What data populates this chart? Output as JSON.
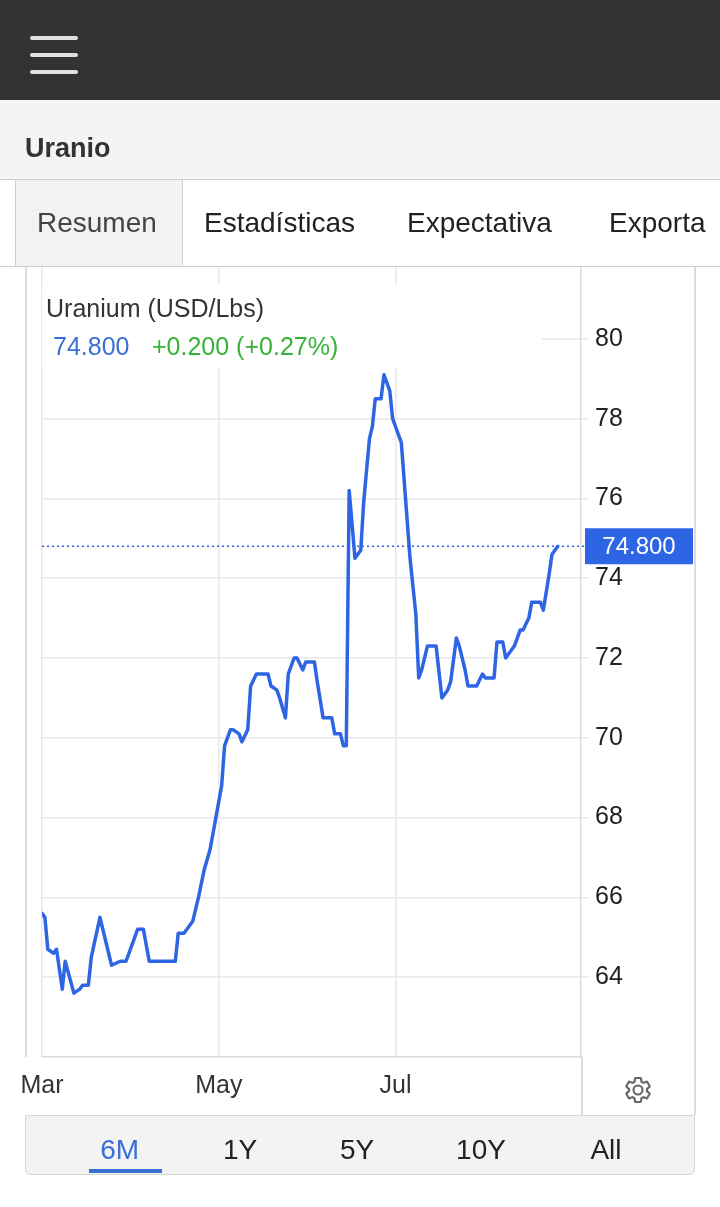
{
  "chart_data": {
    "type": "line",
    "title": "Uranio",
    "subtitle": "Uranium (USD/Lbs)",
    "annotations": [
      "74.800",
      "+0.200 (+0.27%)",
      "Resumen",
      "Estadísticas",
      "Expectativa",
      "Exporta",
      "6M",
      "1Y",
      "5Y",
      "10Y",
      "All"
    ],
    "x": [
      "--03-01",
      "--03-02",
      "--03-03",
      "--03-05",
      "--03-06",
      "--03-08",
      "--03-09",
      "--03-12",
      "--03-14",
      "--03-15",
      "--03-17",
      "--03-18",
      "--03-21",
      "--03-25",
      "--03-28",
      "--03-30",
      "--04-03",
      "--04-05",
      "--04-07",
      "--04-16",
      "--04-17",
      "--04-19",
      "--04-21",
      "--04-22",
      "--04-24",
      "--04-26",
      "--04-28",
      "--04-30",
      "--05-02",
      "--05-03",
      "--05-05",
      "--05-06",
      "--05-08",
      "--05-09",
      "--05-11",
      "--05-12",
      "--05-14",
      "--05-18",
      "--05-19",
      "--05-21",
      "--05-22",
      "--05-24",
      "--05-25",
      "--05-27",
      "--05-28",
      "--05-30",
      "--05-31",
      "--06-01",
      "--06-03",
      "--06-04",
      "--06-06",
      "--06-09",
      "--06-10",
      "--06-12",
      "--06-13",
      "--06-14",
      "--06-15",
      "--06-17",
      "--06-19",
      "--06-20",
      "--06-22",
      "--06-23",
      "--06-24",
      "--06-26",
      "--06-27",
      "--06-29",
      "--06-30",
      "--07-01",
      "--07-03",
      "--07-06",
      "--07-08",
      "--07-09",
      "--07-10",
      "--07-12",
      "--07-15",
      "--07-17",
      "--07-19",
      "--07-20",
      "--07-22",
      "--07-23",
      "--07-25",
      "--07-26",
      "--07-28",
      "--07-29",
      "--07-31",
      "--08-01",
      "--08-04",
      "--08-05",
      "--08-07",
      "--08-08",
      "--08-10",
      "--08-11",
      "--08-13",
      "--08-14",
      "--08-16",
      "--08-17",
      "--08-20",
      "--08-21",
      "--08-23",
      "--08-24",
      "--08-26"
    ],
    "series": [
      {
        "color": "#2e65e5",
        "values": [
          65.6,
          65.5,
          64.7,
          64.6,
          64.7,
          63.7,
          64.4,
          63.6,
          63.7,
          63.8,
          63.8,
          64.5,
          65.5,
          64.3,
          64.4,
          64.4,
          65.2,
          65.2,
          64.4,
          64.4,
          65.1,
          65.1,
          65.3,
          65.4,
          66.0,
          66.7,
          67.2,
          68.0,
          68.8,
          69.8,
          70.2,
          70.2,
          70.1,
          69.9,
          70.2,
          71.3,
          71.6,
          71.6,
          71.3,
          71.2,
          71.0,
          70.5,
          71.6,
          72.0,
          72.0,
          71.7,
          71.9,
          71.9,
          71.9,
          71.4,
          70.5,
          70.5,
          70.1,
          70.1,
          69.8,
          69.8,
          76.2,
          74.5,
          74.7,
          75.9,
          77.5,
          77.8,
          78.5,
          78.5,
          79.1,
          78.7,
          78.0,
          77.8,
          77.4,
          74.5,
          73.1,
          71.5,
          71.7,
          72.3,
          72.3,
          71.0,
          71.2,
          71.4,
          72.5,
          72.3,
          71.7,
          71.3,
          71.3,
          71.3,
          71.6,
          71.5,
          71.5,
          72.4,
          72.4,
          72.0,
          72.2,
          72.3,
          72.7,
          72.7,
          73.0,
          73.4,
          73.4,
          73.2,
          74.1,
          74.6,
          74.8
        ]
      }
    ],
    "xlim": [
      "--03-01",
      "--09-03"
    ],
    "xticks": [
      {
        "value": "--03-01",
        "label": "Mar"
      },
      {
        "value": "--05-01",
        "label": "May"
      },
      {
        "value": "--07-01",
        "label": "Jul"
      }
    ],
    "ylim": [
      62,
      81.8
    ],
    "yticks": [
      64,
      66,
      68,
      70,
      72,
      74,
      76,
      78,
      80
    ],
    "grid": true,
    "ref_lines": [
      {
        "axis": "y",
        "value": 74.8,
        "label": "74.800",
        "color": "#2e65e5",
        "line_style": "dotted"
      }
    ]
  }
}
